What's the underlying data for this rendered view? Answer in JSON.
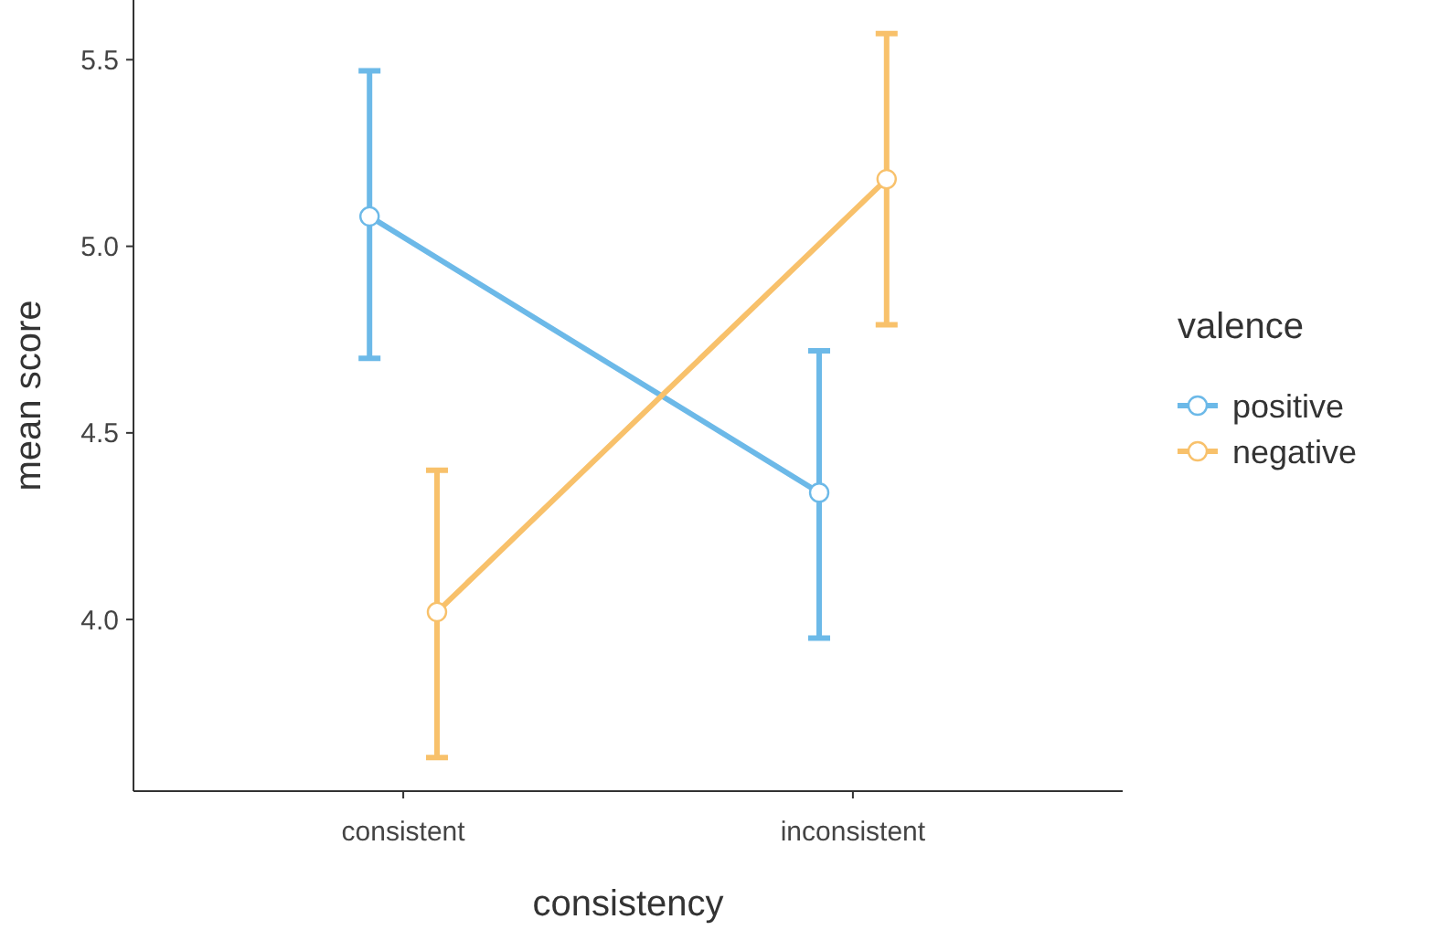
{
  "chart_data": {
    "type": "line",
    "xlabel": "consistency",
    "ylabel": "mean score",
    "legend_title": "valence",
    "categories": [
      "consistent",
      "inconsistent"
    ],
    "series": [
      {
        "name": "positive",
        "color": "#6cb9e8",
        "values": [
          5.08,
          4.34
        ],
        "errors": [
          [
            4.7,
            5.47
          ],
          [
            3.95,
            4.72
          ]
        ]
      },
      {
        "name": "negative",
        "color": "#f8c16b",
        "values": [
          4.02,
          5.18
        ],
        "errors": [
          [
            3.63,
            4.4
          ],
          [
            4.79,
            5.57
          ]
        ]
      }
    ],
    "ylim": [
      3.54,
      5.66
    ],
    "yticks": [
      {
        "value": 4,
        "label": "4.0"
      },
      {
        "value": 4.5,
        "label": "4.5"
      },
      {
        "value": 5,
        "label": "5.0"
      },
      {
        "value": 5.5,
        "label": "5.5"
      }
    ],
    "grid": false,
    "legend": "right",
    "marker": "circle",
    "line_style": "solid"
  }
}
